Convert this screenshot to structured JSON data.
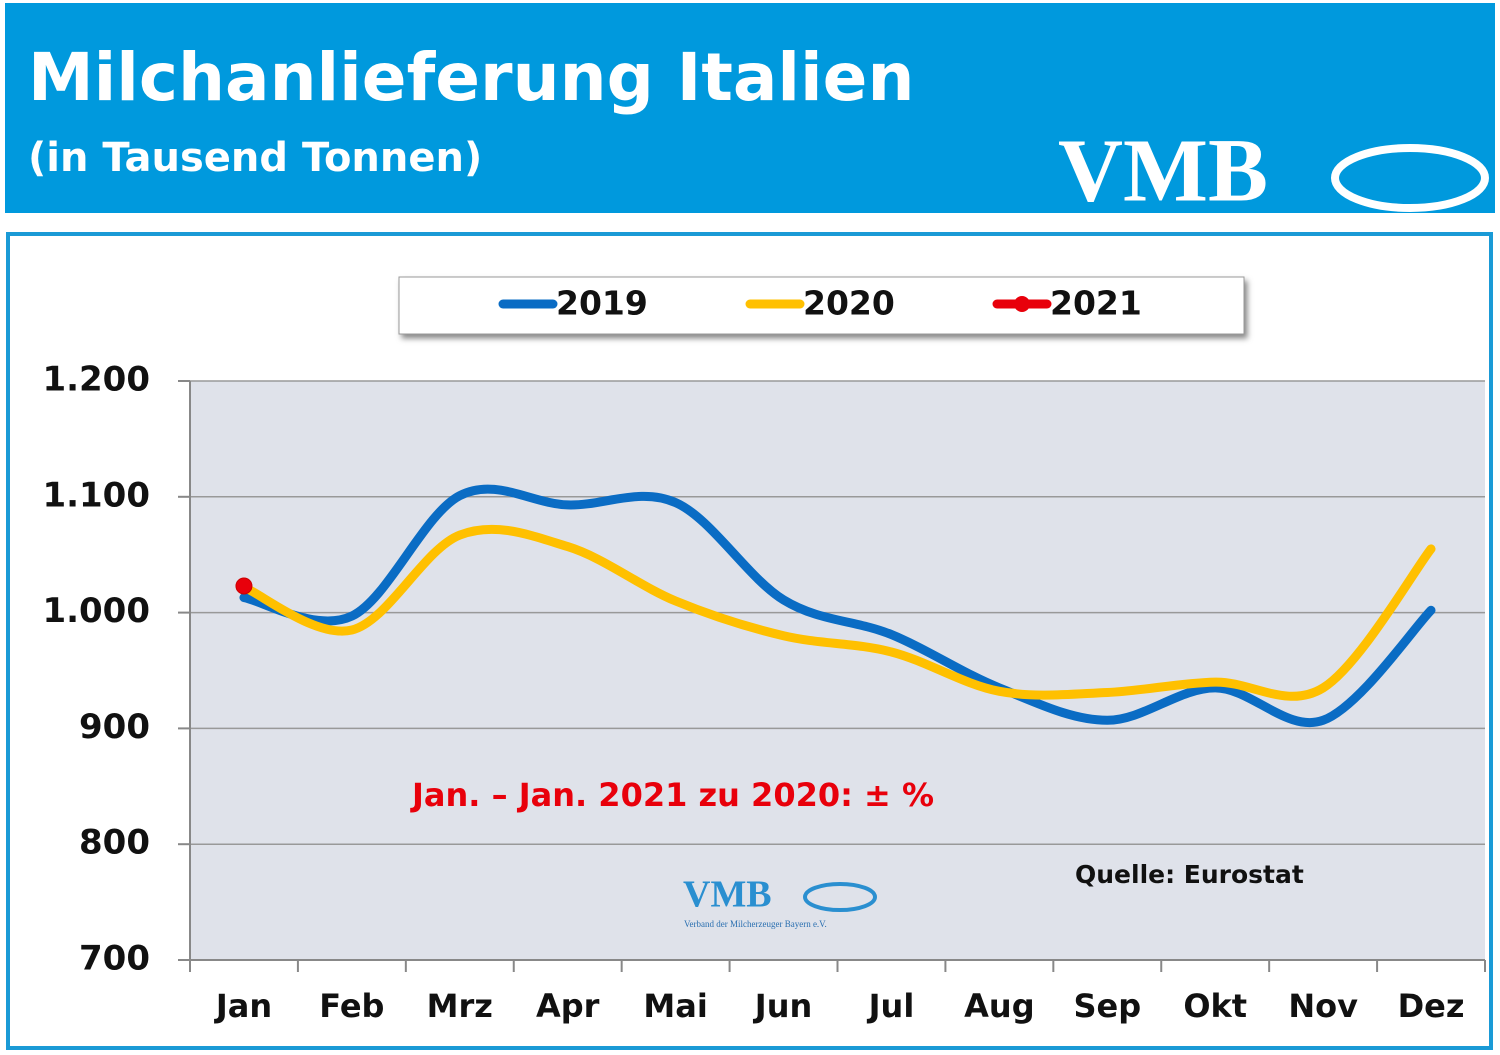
{
  "header": {
    "title": "Milchanlieferung Italien",
    "subtitle": "(in Tausend Tonnen)",
    "logo": "VMB"
  },
  "chart_data": {
    "type": "line",
    "categories": [
      "Jan",
      "Feb",
      "Mrz",
      "Apr",
      "Mai",
      "Jun",
      "Jul",
      "Aug",
      "Sep",
      "Okt",
      "Nov",
      "Dez"
    ],
    "series": [
      {
        "name": "2019",
        "color": "#0a6cc4",
        "values": [
          1013,
          997,
          1101,
          1093,
          1095,
          1011,
          981,
          935,
          907,
          935,
          907,
          1002
        ]
      },
      {
        "name": "2020",
        "color": "#ffc000",
        "values": [
          1022,
          985,
          1067,
          1057,
          1010,
          980,
          966,
          932,
          931,
          940,
          935,
          1055
        ]
      },
      {
        "name": "2021",
        "color": "#e8000b",
        "marker": true,
        "values": [
          1023,
          null,
          null,
          null,
          null,
          null,
          null,
          null,
          null,
          null,
          null,
          null
        ]
      }
    ],
    "ylim": [
      700,
      1200
    ],
    "yticks": [
      700,
      800,
      900,
      {
        "value": 1000,
        "label": "1.000"
      },
      {
        "value": 1100,
        "label": "1.100"
      },
      {
        "value": 1200,
        "label": "1.200"
      }
    ],
    "grid": true,
    "annotation": "Jan. – Jan. 2021 zu 2020: ± %",
    "source": "Quelle: Eurostat",
    "watermark": {
      "logo": "VMB",
      "text": "Verband der Milcherzeuger Bayern e.V."
    }
  }
}
